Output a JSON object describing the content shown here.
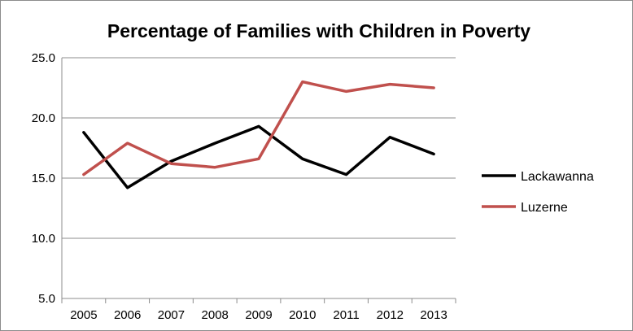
{
  "chart_data": {
    "type": "line",
    "title": "Percentage of Families with Children in Poverty",
    "xlabel": "",
    "ylabel": "",
    "x": [
      "2005",
      "2006",
      "2007",
      "2008",
      "2009",
      "2010",
      "2011",
      "2012",
      "2013"
    ],
    "ylim": [
      5.0,
      25.0
    ],
    "yticks": [
      "25.0",
      "20.0",
      "15.0",
      "10.0",
      "5.0"
    ],
    "grid": "horizontal",
    "legend": "right",
    "series": [
      {
        "name": "Lackawanna",
        "color": "#000000",
        "values": [
          18.8,
          14.2,
          16.4,
          17.9,
          19.3,
          16.6,
          15.3,
          18.4,
          17.0
        ]
      },
      {
        "name": "Luzerne",
        "color": "#c0504d",
        "values": [
          15.3,
          17.9,
          16.2,
          15.9,
          16.6,
          23.0,
          22.2,
          22.8,
          22.5
        ]
      }
    ]
  }
}
